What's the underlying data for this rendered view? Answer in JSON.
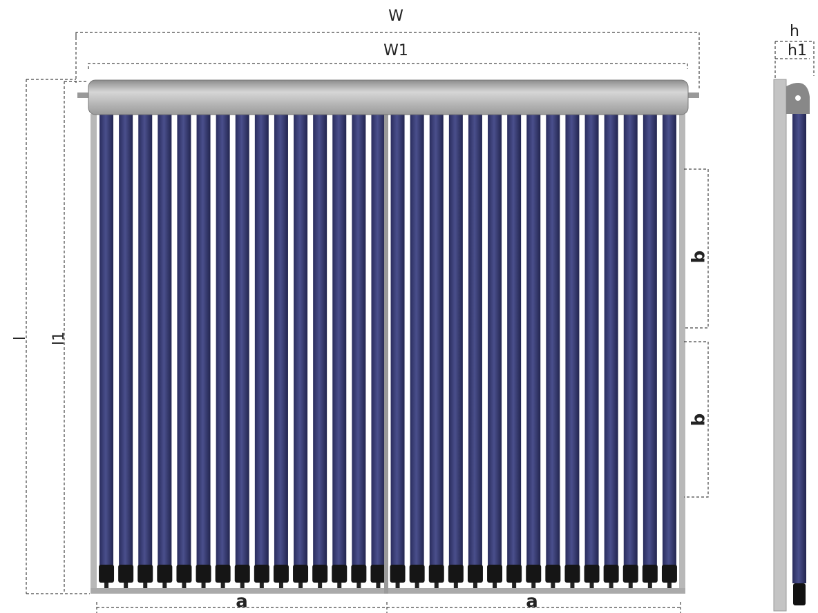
{
  "dimensions": {
    "overall_width": "W",
    "header_width": "W1",
    "overall_length": "l",
    "tube_length": "l1",
    "tube_spacing": [
      "a",
      "a"
    ],
    "support_spacing": [
      "b",
      "b"
    ],
    "depth": "h",
    "depth_inner": "h1"
  }
}
